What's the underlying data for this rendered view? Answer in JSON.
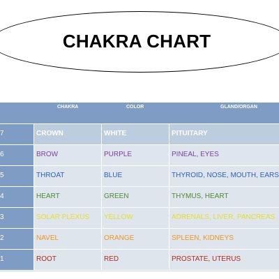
{
  "title": "CHAKRA CHART",
  "headers": {
    "chakra": "CHAKRA",
    "color": "COLOR",
    "gland": "GLAND/ORGAN"
  },
  "rows": [
    {
      "num": "7",
      "chakra": "CROWN",
      "color": "WHITE",
      "gland": "PITUITARY",
      "text_color": "#ffffff"
    },
    {
      "num": "6",
      "chakra": "BROW",
      "color": "PURPLE",
      "gland": "PINEAL, EYES",
      "text_color": "#7a3fa6"
    },
    {
      "num": "5",
      "chakra": "THROAT",
      "color": "BLUE",
      "gland": "THYROID, NOSE, MOUTH, EARS",
      "text_color": "#2c5fc3"
    },
    {
      "num": "4",
      "chakra": "HEART",
      "color": "GREEN",
      "gland": "THYMUS, HEART",
      "text_color": "#4e8a2f"
    },
    {
      "num": "3",
      "chakra": "SOLAR PLEXUS",
      "color": "YELLOW",
      "gland": "ADRENALS, LIVER, PANCREAS",
      "text_color": "#e6df27"
    },
    {
      "num": "2",
      "chakra": "NAVEL",
      "color": "ORANGE",
      "gland": "SPLEEN, KIDNEYS",
      "text_color": "#f0951e"
    },
    {
      "num": "1",
      "chakra": "ROOT",
      "color": "RED",
      "gland": "PROSTATE, UTERUS",
      "text_color": "#b22a1f"
    }
  ],
  "colors": {
    "header_bg": "#7e9cc4",
    "cell_bg": "#dfe5ed",
    "first_row_bg": "#bccde0"
  }
}
